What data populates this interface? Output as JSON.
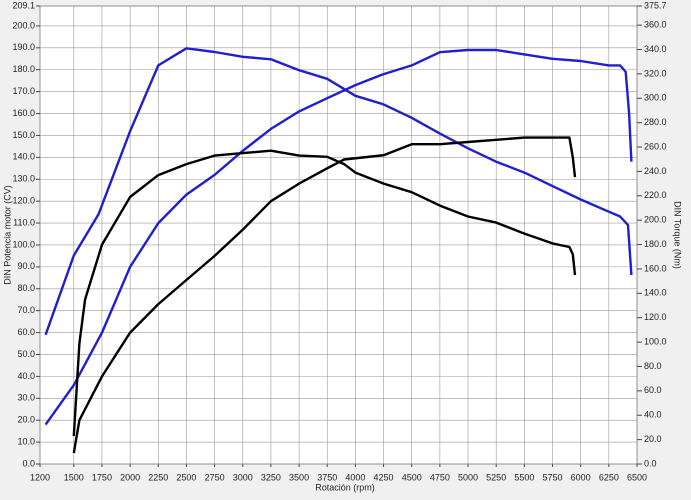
{
  "chart_data": {
    "type": "line",
    "xlabel": "Rotación (rpm)",
    "ylabel": "DIN Potencia motor (CV)",
    "y2label": "DIN Torque (Nm)",
    "xlim": [
      1200,
      6500
    ],
    "xticks": [
      1200,
      1500,
      1750,
      2000,
      2250,
      2500,
      2750,
      3000,
      3250,
      3500,
      3750,
      4000,
      4250,
      4500,
      4750,
      5000,
      5250,
      5500,
      5750,
      6000,
      6250,
      6500
    ],
    "ylim": [
      0,
      209.1
    ],
    "yticks": [
      {
        "value": 0,
        "label": "0.0"
      },
      {
        "value": 10,
        "label": "10.0"
      },
      {
        "value": 20,
        "label": "20.0"
      },
      {
        "value": 30,
        "label": "30.0"
      },
      {
        "value": 40,
        "label": "40.0"
      },
      {
        "value": 50,
        "label": "50.0"
      },
      {
        "value": 60,
        "label": "60.0"
      },
      {
        "value": 70,
        "label": "70.0"
      },
      {
        "value": 80,
        "label": "80.0"
      },
      {
        "value": 90,
        "label": "90.0"
      },
      {
        "value": 100,
        "label": "100.0"
      },
      {
        "value": 110,
        "label": "110.0"
      },
      {
        "value": 120,
        "label": "120.0"
      },
      {
        "value": 130,
        "label": "130.0"
      },
      {
        "value": 140,
        "label": "140.0"
      },
      {
        "value": 150,
        "label": "150.0"
      },
      {
        "value": 160,
        "label": "160.0"
      },
      {
        "value": 170,
        "label": "170.0"
      },
      {
        "value": 180,
        "label": "180.0"
      },
      {
        "value": 190,
        "label": "190.0"
      },
      {
        "value": 200,
        "label": "200.0"
      },
      {
        "value": 209.1,
        "label": "209.1"
      }
    ],
    "y2lim": [
      0,
      375.7
    ],
    "y2ticks": [
      {
        "value": 0,
        "label": "0.0"
      },
      {
        "value": 20,
        "label": "20.0"
      },
      {
        "value": 40,
        "label": "40.0"
      },
      {
        "value": 60,
        "label": "60.0"
      },
      {
        "value": 80,
        "label": "80.0"
      },
      {
        "value": 100,
        "label": "100.0"
      },
      {
        "value": 120,
        "label": "120.0"
      },
      {
        "value": 140,
        "label": "140.0"
      },
      {
        "value": 160,
        "label": "160.0"
      },
      {
        "value": 180,
        "label": "180.0"
      },
      {
        "value": 200,
        "label": "200.0"
      },
      {
        "value": 220,
        "label": "220.0"
      },
      {
        "value": 240,
        "label": "240.0"
      },
      {
        "value": 260,
        "label": "260.0"
      },
      {
        "value": 280,
        "label": "280.0"
      },
      {
        "value": 300,
        "label": "300.0"
      },
      {
        "value": 320,
        "label": "320.0"
      },
      {
        "value": 340,
        "label": "340.0"
      },
      {
        "value": 360,
        "label": "360.0"
      },
      {
        "value": 375.7,
        "label": "375.7"
      }
    ],
    "grid": true,
    "series": [
      {
        "color": "#1f1fd0",
        "x": [
          1250,
          1500,
          1750,
          2000,
          2250,
          2500,
          2750,
          3000,
          3250,
          3500,
          3750,
          4000,
          4250,
          4500,
          4750,
          5000,
          5250,
          5500,
          5750,
          6000,
          6250,
          6350,
          6400,
          6430,
          6450
        ],
        "values": [
          18,
          36,
          60,
          90,
          110,
          123,
          132,
          143,
          153,
          161,
          167,
          173,
          178,
          182,
          188,
          189,
          189,
          187,
          185,
          184,
          182,
          182,
          179,
          160,
          138
        ]
      },
      {
        "color": "#1f1fd0",
        "axis": "y2",
        "x": [
          1250,
          1500,
          1720,
          2000,
          2250,
          2500,
          2750,
          3000,
          3250,
          3500,
          3750,
          4000,
          4250,
          4500,
          4750,
          5000,
          5250,
          5500,
          5750,
          6000,
          6250,
          6350,
          6420,
          6450
        ],
        "values": [
          106,
          171,
          205,
          273,
          327,
          341,
          338,
          334,
          332,
          323,
          316,
          302,
          295,
          284,
          271,
          259,
          248,
          239,
          228,
          217,
          207,
          203,
          196,
          155
        ]
      },
      {
        "color": "#000000",
        "x": [
          1500,
          1550,
          1750,
          2000,
          2250,
          2500,
          2750,
          3000,
          3250,
          3500,
          3750,
          3900,
          4250,
          4500,
          4750,
          5000,
          5250,
          5500,
          5750,
          5900,
          5930,
          5950
        ],
        "values": [
          5,
          20,
          40,
          60,
          73,
          84,
          95,
          107,
          120,
          128,
          135,
          139,
          141,
          146,
          146,
          147,
          148,
          149,
          149,
          149,
          140,
          131
        ]
      },
      {
        "color": "#000000",
        "axis": "y2",
        "x": [
          1500,
          1550,
          1600,
          1750,
          2000,
          2250,
          2500,
          2750,
          3000,
          3250,
          3500,
          3750,
          3900,
          4000,
          4250,
          4500,
          4750,
          5000,
          5250,
          5500,
          5750,
          5900,
          5930,
          5950
        ],
        "values": [
          23,
          99,
          135,
          180,
          219,
          237,
          246,
          253,
          255,
          257,
          253,
          252,
          246,
          239,
          230,
          223,
          212,
          203,
          198,
          189,
          181,
          178,
          172,
          155
        ]
      }
    ]
  }
}
